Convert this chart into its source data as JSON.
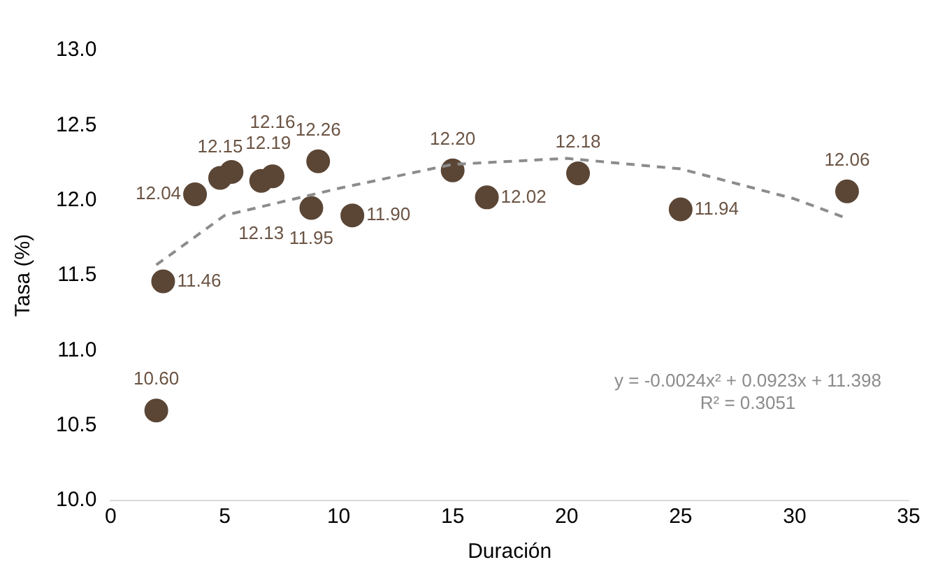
{
  "chart_data": {
    "type": "scatter",
    "xlabel": "Duración",
    "ylabel": "Tasa (%)",
    "series": [
      {
        "color": "#5b4636",
        "x": [
          2.0,
          2.3,
          3.7,
          4.8,
          5.3,
          6.6,
          7.1,
          8.8,
          9.1,
          10.6,
          15.0,
          16.5,
          20.5,
          25.0,
          32.3
        ],
        "values": [
          10.6,
          11.46,
          12.04,
          12.15,
          12.19,
          12.13,
          12.16,
          11.95,
          12.26,
          11.9,
          12.2,
          12.02,
          12.18,
          11.94,
          12.06
        ],
        "value_labels": [
          "10.60",
          "11.46",
          "12.04",
          "12.15",
          "12.19",
          "12.13",
          "12.16",
          "11.95",
          "12.26",
          "11.90",
          "12.20",
          "12.02",
          "12.18",
          "11.94",
          "12.06"
        ]
      },
      {
        "type": "line",
        "color": "#8c8c8c",
        "line_style": "dashed",
        "marker": "none",
        "x": [
          2,
          5,
          10,
          15,
          20,
          25,
          30,
          32.3
        ],
        "values": [
          11.57,
          11.9,
          12.08,
          12.24,
          12.28,
          12.21,
          12.01,
          11.88
        ]
      }
    ],
    "xlim": [
      0,
      35
    ],
    "xticks": [
      0,
      5,
      10,
      15,
      20,
      25,
      30,
      35
    ],
    "ylim": [
      10.0,
      13.0
    ],
    "yticks": [
      {
        "value": 10,
        "label": "10.0"
      },
      {
        "value": 10.5,
        "label": "10.5"
      },
      {
        "value": 11,
        "label": "11.0"
      },
      {
        "value": 11.5,
        "label": "11.5"
      },
      {
        "value": 12,
        "label": "12.0"
      },
      {
        "value": 12.5,
        "label": "12.5"
      },
      {
        "value": 13,
        "label": "13.0"
      }
    ],
    "grid": false,
    "legend": false,
    "marker": "circle",
    "annotations": [
      "y = -0.0024x² + 0.0923x + 11.398",
      "R² = 0.3051"
    ]
  }
}
